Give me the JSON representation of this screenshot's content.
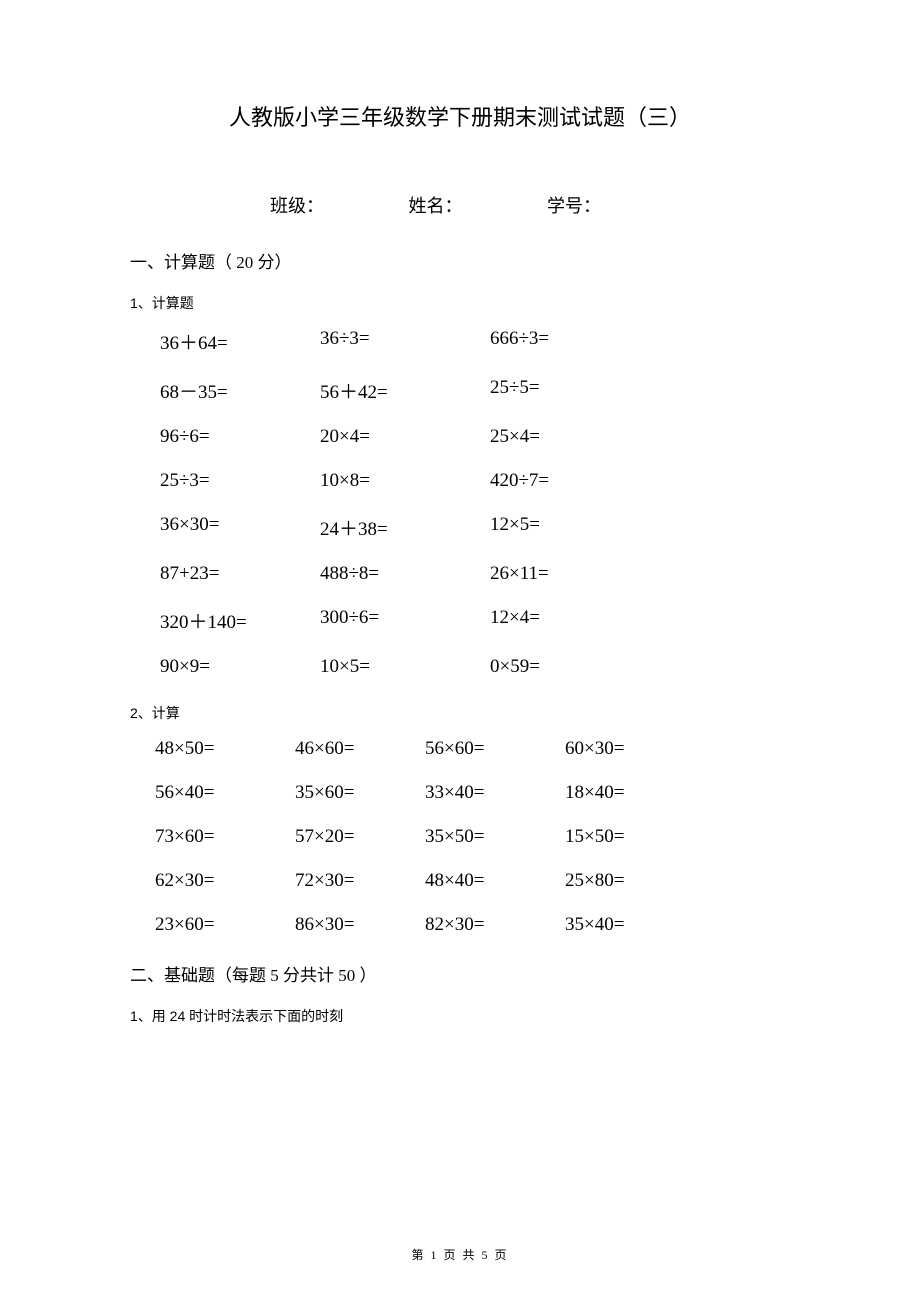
{
  "title": "人教版小学三年级数学下册期末测试试题（三）",
  "info": {
    "class_label": "班级：",
    "name_label": "姓名：",
    "id_label": "学号："
  },
  "section1": {
    "header": "一、计算题（ 20 分）",
    "sub1": {
      "header": "1、计算题",
      "rows": [
        [
          "36＋64=",
          "36÷3=",
          "666÷3="
        ],
        [
          "68－35=",
          "56＋42=",
          "25÷5="
        ],
        [
          "96÷6=",
          "20×4=",
          "25×4="
        ],
        [
          "25÷3=",
          "10×8=",
          "420÷7="
        ],
        [
          "36×30=",
          "24＋38=",
          "12×5="
        ],
        [
          "87+23=",
          "488÷8=",
          "26×11="
        ],
        [
          "320＋140=",
          "300÷6=",
          "12×4="
        ],
        [
          "90×9=",
          "10×5=",
          "0×59="
        ]
      ]
    },
    "sub2": {
      "header": "2、计算",
      "rows": [
        [
          "48×50=",
          "46×60=",
          "56×60=",
          "60×30="
        ],
        [
          "56×40=",
          "35×60=",
          "33×40=",
          "18×40="
        ],
        [
          "73×60=",
          "57×20=",
          "35×50=",
          "15×50="
        ],
        [
          "62×30=",
          "72×30=",
          "48×40=",
          "25×80="
        ],
        [
          "23×60=",
          "86×30=",
          "82×30=",
          "35×40="
        ]
      ]
    }
  },
  "section2": {
    "header": "二、基础题（每题  5 分共计  50 ）",
    "sub1": {
      "header": "1、用 24 时计时法表示下面的时刻"
    }
  },
  "footer": "第 1 页 共 5 页"
}
